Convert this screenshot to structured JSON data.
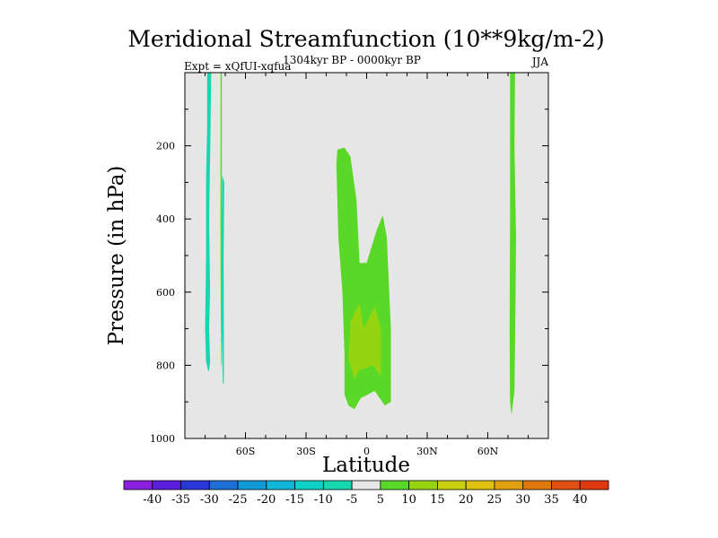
{
  "chart_data": {
    "type": "contour",
    "title": "Meridional Streamfunction (10**9kg/m-2)",
    "subtitle_left": "Expt = xQfUI-xqfua",
    "subtitle_center": "1304kyr BP - 0000kyr BP",
    "subtitle_right": "JJA",
    "xlabel": "Latitude",
    "ylabel": "Pressure (in hPa)",
    "xlim": [
      -90,
      90
    ],
    "ylim": [
      0,
      1000
    ],
    "y_inverted": true,
    "x_ticks": [
      {
        "value": -60,
        "label": "60S"
      },
      {
        "value": -30,
        "label": "30S"
      },
      {
        "value": 0,
        "label": "0"
      },
      {
        "value": 30,
        "label": "30N"
      },
      {
        "value": 60,
        "label": "60N"
      }
    ],
    "y_ticks": [
      {
        "value": 200,
        "label": "200"
      },
      {
        "value": 400,
        "label": "400"
      },
      {
        "value": 600,
        "label": "600"
      },
      {
        "value": 800,
        "label": "800"
      },
      {
        "value": 1000,
        "label": "1000"
      }
    ],
    "background_color": "#e6e6e6",
    "levels": [
      {
        "label": "-40",
        "color": "#8a1fe0"
      },
      {
        "label": "-35",
        "color": "#5a1ee0"
      },
      {
        "label": "-30",
        "color": "#2838d8"
      },
      {
        "label": "-25",
        "color": "#1e6ed8"
      },
      {
        "label": "-20",
        "color": "#109bd8"
      },
      {
        "label": "-15",
        "color": "#10b8d8"
      },
      {
        "label": "-10",
        "color": "#10d0c8"
      },
      {
        "label": "-5",
        "color": "#16d8b0"
      },
      {
        "label": "5",
        "color": "#e6e6e6"
      },
      {
        "label": "10",
        "color": "#5ad828"
      },
      {
        "label": "15",
        "color": "#96d410"
      },
      {
        "label": "20",
        "color": "#c8d010"
      },
      {
        "label": "25",
        "color": "#e0c010"
      },
      {
        "label": "30",
        "color": "#e0a010"
      },
      {
        "label": "35",
        "color": "#e07810"
      },
      {
        "label": "40",
        "color": "#e05010"
      }
    ],
    "extra_colorbar_box": "#e03810",
    "regions": [
      {
        "name": "sh-cell-west",
        "color": "#16d8b0",
        "points": [
          [
            -79,
            0
          ],
          [
            -77,
            0
          ],
          [
            -77.3,
            150
          ],
          [
            -78,
            400
          ],
          [
            -77.5,
            600
          ],
          [
            -78,
            700
          ],
          [
            -77.5,
            790
          ],
          [
            -78,
            815
          ],
          [
            -78.5,
            815
          ],
          [
            -79.5,
            790
          ],
          [
            -80,
            700
          ],
          [
            -79.5,
            500
          ],
          [
            -79.5,
            300
          ],
          [
            -79,
            150
          ]
        ]
      },
      {
        "name": "sh-cell-east",
        "color": "#16d8b0",
        "points": [
          [
            -71.5,
            280
          ],
          [
            -70.5,
            300
          ],
          [
            -70.8,
            500
          ],
          [
            -70.7,
            700
          ],
          [
            -70.7,
            850
          ],
          [
            -71.2,
            850
          ],
          [
            -71.8,
            700
          ],
          [
            -72,
            500
          ]
        ]
      },
      {
        "name": "sh-thin-green",
        "color": "#5ad828",
        "points": [
          [
            -72.3,
            0
          ],
          [
            -71.7,
            0
          ],
          [
            -71.7,
            400
          ],
          [
            -71.9,
            800
          ],
          [
            -72.2,
            800
          ],
          [
            -72.4,
            400
          ]
        ]
      },
      {
        "name": "tropical-cell",
        "color": "#5ad828",
        "points": [
          [
            -14.5,
            210
          ],
          [
            -11,
            205
          ],
          [
            -8,
            230
          ],
          [
            -5,
            350
          ],
          [
            -3.5,
            520
          ],
          [
            0,
            520
          ],
          [
            5,
            430
          ],
          [
            8,
            390
          ],
          [
            10,
            450
          ],
          [
            12,
            700
          ],
          [
            12,
            900
          ],
          [
            9,
            910
          ],
          [
            4,
            870
          ],
          [
            -3,
            890
          ],
          [
            -6,
            920
          ],
          [
            -9,
            910
          ],
          [
            -11,
            880
          ],
          [
            -11,
            770
          ],
          [
            -12,
            600
          ],
          [
            -14,
            450
          ],
          [
            -15,
            250
          ]
        ]
      },
      {
        "name": "tropical-core",
        "color": "#96d410",
        "points": [
          [
            -8,
            680
          ],
          [
            -3.5,
            630
          ],
          [
            -1.5,
            700
          ],
          [
            4,
            640
          ],
          [
            7,
            700
          ],
          [
            7,
            830
          ],
          [
            3,
            800
          ],
          [
            -4,
            815
          ],
          [
            -6,
            840
          ],
          [
            -9,
            780
          ]
        ]
      },
      {
        "name": "nh-cell",
        "color": "#5ad828",
        "points": [
          [
            71,
            0
          ],
          [
            73.5,
            0
          ],
          [
            73.2,
            200
          ],
          [
            74,
            450
          ],
          [
            73.6,
            700
          ],
          [
            73.2,
            870
          ],
          [
            71.8,
            935
          ],
          [
            71,
            900
          ],
          [
            70.8,
            700
          ],
          [
            71,
            400
          ]
        ]
      }
    ]
  }
}
